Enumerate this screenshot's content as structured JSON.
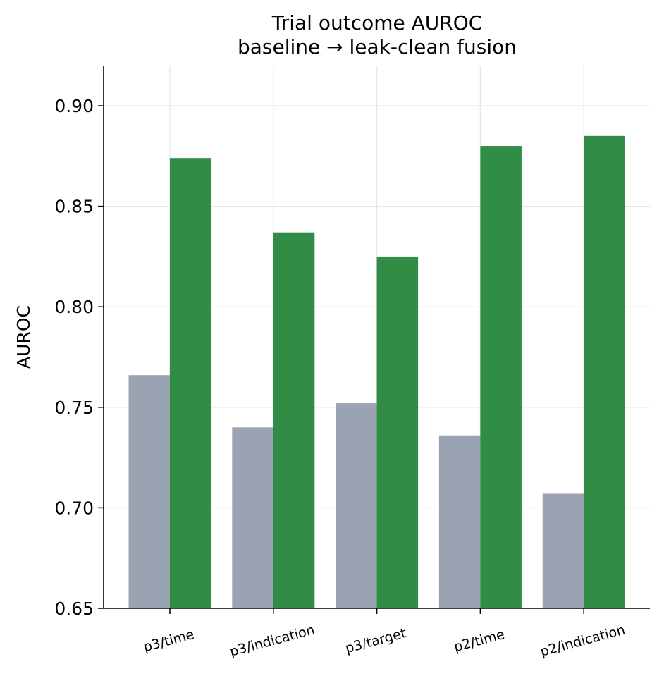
{
  "chart_data": {
    "type": "bar",
    "title": "Trial outcome AUROC",
    "subtitle": "baseline → leak-clean fusion",
    "xlabel": "",
    "ylabel": "AUROC",
    "ylim": [
      0.65,
      0.92
    ],
    "yticks": [
      "0.65",
      "0.70",
      "0.75",
      "0.80",
      "0.85",
      "0.90"
    ],
    "grid": true,
    "legend": "none",
    "categories": [
      "p3/time",
      "p3/indication",
      "p3/target",
      "p2/time",
      "p2/indication"
    ],
    "series": [
      {
        "values": [
          0.766,
          0.74,
          0.752,
          0.736,
          0.707
        ],
        "color": "#9aa3b1"
      },
      {
        "values": [
          0.874,
          0.837,
          0.825,
          0.88,
          0.885
        ],
        "color": "#318c46"
      }
    ]
  }
}
